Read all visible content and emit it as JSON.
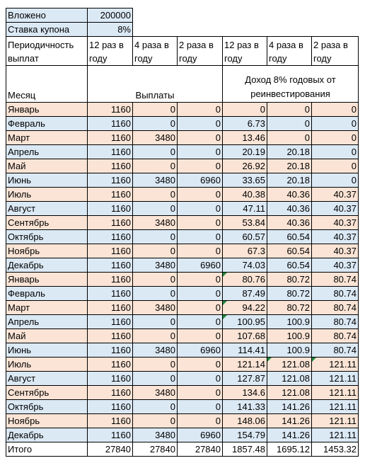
{
  "top": {
    "invested_label": "Вложено",
    "invested_value": "200000",
    "coupon_label": "Ставка купона",
    "coupon_value": "8%"
  },
  "header": {
    "period_label": "Периодичность выплат",
    "freq": [
      "12 раз в году",
      "4 раза в году",
      "2 раза в году",
      "12 раз в году",
      "4 раза в году",
      "2 раза в году"
    ],
    "month_label": "Месяц",
    "payments_label": "Выплаты",
    "income_label": "Доход 8% годовых от реинвестирования"
  },
  "rows": [
    {
      "m": "Январь",
      "v": [
        "1160",
        "0",
        "0",
        "0",
        "0",
        "0"
      ],
      "bg": "peach"
    },
    {
      "m": "Февраль",
      "v": [
        "1160",
        "0",
        "0",
        "6.73",
        "0",
        "0"
      ],
      "bg": "blue"
    },
    {
      "m": "Март",
      "v": [
        "1160",
        "3480",
        "0",
        "13.46",
        "0",
        "0"
      ],
      "bg": "peach"
    },
    {
      "m": "Апрель",
      "v": [
        "1160",
        "0",
        "0",
        "20.19",
        "20.18",
        "0"
      ],
      "bg": "blue"
    },
    {
      "m": "Май",
      "v": [
        "1160",
        "0",
        "0",
        "26.92",
        "20.18",
        "0"
      ],
      "bg": "peach"
    },
    {
      "m": "Июнь",
      "v": [
        "1160",
        "3480",
        "6960",
        "33.65",
        "20.18",
        "0"
      ],
      "bg": "blue"
    },
    {
      "m": "Июль",
      "v": [
        "1160",
        "0",
        "0",
        "40.38",
        "40.36",
        "40.37"
      ],
      "bg": "peach"
    },
    {
      "m": "Август",
      "v": [
        "1160",
        "0",
        "0",
        "47.11",
        "40.36",
        "40.37"
      ],
      "bg": "blue"
    },
    {
      "m": "Сентябрь",
      "v": [
        "1160",
        "3480",
        "0",
        "53.84",
        "40.36",
        "40.37"
      ],
      "bg": "peach"
    },
    {
      "m": "Октябрь",
      "v": [
        "1160",
        "0",
        "0",
        "60.57",
        "60.54",
        "40.37"
      ],
      "bg": "blue"
    },
    {
      "m": "Ноябрь",
      "v": [
        "1160",
        "0",
        "0",
        "67.3",
        "60.54",
        "40.37"
      ],
      "bg": "peach"
    },
    {
      "m": "Декабрь",
      "v": [
        "1160",
        "3480",
        "6960",
        "74.03",
        "60.54",
        "40.37"
      ],
      "bg": "blue"
    },
    {
      "m": "Январь",
      "v": [
        "1160",
        "0",
        "0",
        "80.76",
        "80.72",
        "80.74"
      ],
      "bg": "peach"
    },
    {
      "m": "Февраль",
      "v": [
        "1160",
        "0",
        "0",
        "87.49",
        "80.72",
        "80.74"
      ],
      "bg": "blue"
    },
    {
      "m": "Март",
      "v": [
        "1160",
        "3480",
        "0",
        "94.22",
        "80.72",
        "80.74"
      ],
      "bg": "peach"
    },
    {
      "m": "Апрель",
      "v": [
        "1160",
        "0",
        "0",
        "100.95",
        "100.9",
        "80.74"
      ],
      "bg": "blue"
    },
    {
      "m": "Май",
      "v": [
        "1160",
        "0",
        "0",
        "107.68",
        "100.9",
        "80.74"
      ],
      "bg": "peach"
    },
    {
      "m": "Июнь",
      "v": [
        "1160",
        "3480",
        "6960",
        "114.41",
        "100.9",
        "80.74"
      ],
      "bg": "blue"
    },
    {
      "m": "Июль",
      "v": [
        "1160",
        "0",
        "0",
        "121.14",
        "121.08",
        "121.11"
      ],
      "bg": "peach"
    },
    {
      "m": "Август",
      "v": [
        "1160",
        "0",
        "0",
        "127.87",
        "121.08",
        "121.11"
      ],
      "bg": "blue"
    },
    {
      "m": "Сентябрь",
      "v": [
        "1160",
        "3480",
        "0",
        "134.6",
        "121.08",
        "121.11"
      ],
      "bg": "peach"
    },
    {
      "m": "Октябрь",
      "v": [
        "1160",
        "0",
        "0",
        "141.33",
        "141.26",
        "121.11"
      ],
      "bg": "blue"
    },
    {
      "m": "Ноябрь",
      "v": [
        "1160",
        "0",
        "0",
        "148.06",
        "141.26",
        "121.11"
      ],
      "bg": "peach"
    },
    {
      "m": "Декабрь",
      "v": [
        "1160",
        "3480",
        "6960",
        "154.79",
        "141.26",
        "121.11"
      ],
      "bg": "blue"
    }
  ],
  "total": {
    "label": "Итого",
    "v": [
      "27840",
      "27840",
      "27840",
      "1857.48",
      "1695.12",
      "1453.32"
    ]
  },
  "colors": {
    "blue": "#dbe9f5",
    "peach": "#fbe4d5"
  }
}
